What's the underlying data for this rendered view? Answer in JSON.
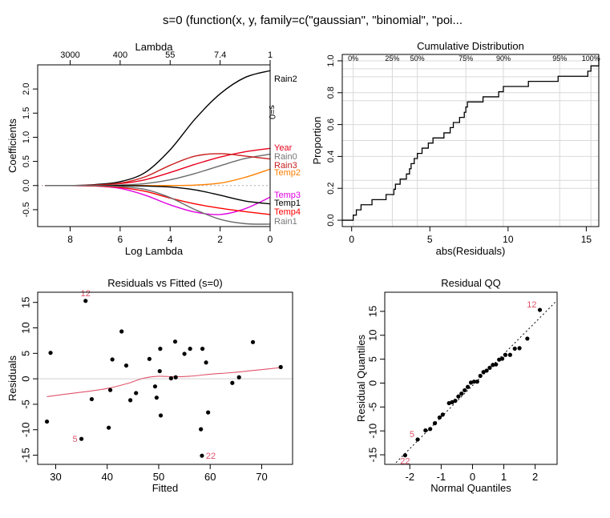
{
  "page_title": "s=0     (function(x, y, family=c(\"gaussian\", \"binomial\", \"poi...",
  "chart_data": [
    {
      "type": "line",
      "title": "",
      "top_axis_label": "Lambda",
      "top_ticks": [
        {
          "x": 8,
          "label": "3000"
        },
        {
          "x": 6,
          "label": "400"
        },
        {
          "x": 4,
          "label": "55"
        },
        {
          "x": 2,
          "label": "7.4"
        },
        {
          "x": 0,
          "label": "1"
        }
      ],
      "xlabel": "Log Lambda",
      "ylabel": "Coefficients",
      "xlim": [
        9.3,
        0
      ],
      "ylim": [
        -0.85,
        2.5
      ],
      "xticks": [
        8,
        6,
        4,
        2,
        0
      ],
      "yticks": [
        -0.5,
        0.0,
        0.5,
        1.0,
        1.5,
        2.0
      ],
      "ytick_labels": [
        "-0.5",
        "0.0",
        "0.5",
        "1.0",
        "1.5",
        "2.0"
      ],
      "vline_label": "s=0",
      "x": [
        9,
        8,
        7,
        6,
        5,
        4,
        3,
        2,
        1,
        0
      ],
      "series": [
        {
          "name": "Rain2",
          "color": "#000000",
          "values": [
            0.0,
            0.0,
            0.02,
            0.08,
            0.27,
            0.74,
            1.38,
            1.9,
            2.24,
            2.38
          ]
        },
        {
          "name": "Year",
          "color": "#e8001c",
          "values": [
            0.0,
            0.0,
            0.01,
            0.04,
            0.12,
            0.27,
            0.44,
            0.59,
            0.7,
            0.77
          ]
        },
        {
          "name": "Rain0",
          "color": "#6b6b6b",
          "values": [
            0.0,
            0.0,
            0.0,
            0.01,
            0.04,
            0.12,
            0.25,
            0.41,
            0.56,
            0.65
          ]
        },
        {
          "name": "Rain3",
          "color": "#c81e1e",
          "values": [
            0.0,
            0.0,
            0.01,
            0.05,
            0.18,
            0.42,
            0.61,
            0.66,
            0.61,
            0.55
          ]
        },
        {
          "name": "Temp2",
          "color": "#ff7f00",
          "values": [
            0.0,
            0.0,
            0.0,
            0.0,
            0.0,
            0.0,
            0.01,
            0.05,
            0.17,
            0.34
          ]
        },
        {
          "name": "Temp3",
          "color": "#e000e0",
          "values": [
            0.0,
            0.0,
            -0.01,
            -0.06,
            -0.2,
            -0.4,
            -0.55,
            -0.6,
            -0.48,
            -0.24
          ]
        },
        {
          "name": "Temp1",
          "color": "#000000",
          "values": [
            0.0,
            0.0,
            0.0,
            0.0,
            -0.01,
            -0.03,
            -0.09,
            -0.2,
            -0.32,
            -0.38
          ]
        },
        {
          "name": "Temp4",
          "color": "#ff0000",
          "values": [
            0.0,
            0.0,
            -0.01,
            -0.04,
            -0.12,
            -0.26,
            -0.38,
            -0.47,
            -0.54,
            -0.6
          ]
        },
        {
          "name": "Rain1",
          "color": "#6b6b6b",
          "values": [
            0.0,
            0.0,
            0.0,
            -0.02,
            -0.08,
            -0.25,
            -0.5,
            -0.7,
            -0.79,
            -0.8
          ]
        }
      ]
    },
    {
      "type": "line",
      "title": "Cumulative Distribution",
      "xlabel": "abs(Residuals)",
      "ylabel": "Proportion",
      "xlim": [
        -0.6,
        15.8
      ],
      "ylim": [
        -0.04,
        1.04
      ],
      "xticks": [
        0,
        5,
        10,
        15
      ],
      "yticks": [
        0.0,
        0.2,
        0.4,
        0.6,
        0.8,
        1.0
      ],
      "ytick_labels": [
        "0.0",
        "0.2",
        "0.4",
        "0.6",
        "0.8",
        "1.0"
      ],
      "grid": true,
      "quantiles": [
        {
          "label": "0%",
          "x": 0.1
        },
        {
          "label": "25%",
          "x": 2.6
        },
        {
          "label": "50%",
          "x": 4.2
        },
        {
          "label": "75%",
          "x": 7.3
        },
        {
          "label": "90%",
          "x": 9.7
        },
        {
          "label": "95%",
          "x": 13.3
        },
        {
          "label": "100%",
          "x": 15.3
        }
      ],
      "step_x": [
        0.1,
        0.3,
        0.6,
        1.3,
        2.2,
        2.7,
        2.8,
        3.1,
        3.5,
        3.7,
        3.8,
        4.0,
        4.2,
        4.5,
        4.9,
        5.2,
        5.9,
        6.3,
        6.5,
        6.9,
        7.2,
        7.3,
        7.4,
        8.4,
        9.4,
        9.7,
        11.3,
        13.2,
        15.1,
        15.3
      ],
      "step_y": [
        0.032,
        0.065,
        0.097,
        0.129,
        0.161,
        0.194,
        0.226,
        0.258,
        0.29,
        0.323,
        0.355,
        0.387,
        0.419,
        0.452,
        0.484,
        0.516,
        0.548,
        0.581,
        0.613,
        0.645,
        0.677,
        0.71,
        0.742,
        0.774,
        0.806,
        0.839,
        0.871,
        0.903,
        0.935,
        0.968
      ]
    },
    {
      "type": "scatter",
      "title": "Residuals vs Fitted     (s=0)",
      "xlabel": "Fitted",
      "ylabel": "Residuals",
      "xlim": [
        26.5,
        76
      ],
      "ylim": [
        -16.8,
        17
      ],
      "xticks": [
        30,
        40,
        50,
        60,
        70
      ],
      "yticks": [
        -15,
        -10,
        -5,
        0,
        5,
        10,
        15
      ],
      "hline": 0,
      "points": [
        {
          "x": 28.3,
          "y": -8.4
        },
        {
          "x": 29,
          "y": 5.1
        },
        {
          "x": 35,
          "y": -11.8
        },
        {
          "x": 35.8,
          "y": 15.3
        },
        {
          "x": 37,
          "y": -4
        },
        {
          "x": 40.3,
          "y": -9.6
        },
        {
          "x": 40.6,
          "y": -2.2
        },
        {
          "x": 41,
          "y": 3.8
        },
        {
          "x": 42.8,
          "y": 9.3
        },
        {
          "x": 43.7,
          "y": 2.6
        },
        {
          "x": 44.5,
          "y": -4.2
        },
        {
          "x": 45.6,
          "y": -2.8
        },
        {
          "x": 48.2,
          "y": 3.9
        },
        {
          "x": 49.3,
          "y": -1.5
        },
        {
          "x": 49.6,
          "y": -3.7
        },
        {
          "x": 50.2,
          "y": 1.5
        },
        {
          "x": 50.3,
          "y": 5.9
        },
        {
          "x": 50.4,
          "y": -7.2
        },
        {
          "x": 52.4,
          "y": 0.1
        },
        {
          "x": 53.2,
          "y": 7.3
        },
        {
          "x": 53.3,
          "y": 0.3
        },
        {
          "x": 55,
          "y": 4.9
        },
        {
          "x": 56.1,
          "y": 5.9
        },
        {
          "x": 58.2,
          "y": -9.9
        },
        {
          "x": 58.4,
          "y": -15.1
        },
        {
          "x": 58.5,
          "y": 5.9
        },
        {
          "x": 59.2,
          "y": 3.2
        },
        {
          "x": 59.6,
          "y": -6.6
        },
        {
          "x": 64.3,
          "y": -0.8
        },
        {
          "x": 65.6,
          "y": 0.3
        },
        {
          "x": 68.3,
          "y": 7.2
        },
        {
          "x": 73.7,
          "y": 2.3
        }
      ],
      "labels": [
        {
          "text": "12",
          "x": 35.8,
          "y": 15.3
        },
        {
          "text": "5",
          "x": 35,
          "y": -11.8
        },
        {
          "text": "22",
          "x": 58.4,
          "y": -15.1
        }
      ],
      "smooth": {
        "x": [
          28.3,
          32,
          36,
          40,
          44,
          47,
          50,
          53,
          56,
          60,
          64,
          68,
          73.7
        ],
        "y": [
          -3.5,
          -3.0,
          -2.5,
          -1.9,
          -0.9,
          0.1,
          0.5,
          0.4,
          0.5,
          0.9,
          1.2,
          1.6,
          2.2
        ]
      }
    },
    {
      "type": "scatter",
      "title": "Residual QQ",
      "xlabel": "Normal Quantiles",
      "ylabel": "Residual Quantiles",
      "xlim": [
        -2.8,
        2.7
      ],
      "ylim": [
        -17,
        19
      ],
      "xticks": [
        -2,
        -1,
        0,
        1,
        2
      ],
      "yticks": [
        -15,
        -10,
        -5,
        0,
        5,
        10,
        15
      ],
      "reference_line": {
        "x": [
          -2.8,
          2.7
        ],
        "y": [
          -19.0,
          17.3
        ]
      },
      "x": [
        -2.15,
        -1.75,
        -1.5,
        -1.35,
        -1.2,
        -1.05,
        -0.95,
        -0.75,
        -0.65,
        -0.55,
        -0.45,
        -0.35,
        -0.25,
        -0.15,
        -0.05,
        0.05,
        0.15,
        0.25,
        0.35,
        0.45,
        0.55,
        0.65,
        0.75,
        0.85,
        0.95,
        1.05,
        1.2,
        1.35,
        1.5,
        1.75,
        2.15
      ],
      "y": [
        -15.1,
        -11.8,
        -9.9,
        -9.6,
        -8.4,
        -7.2,
        -6.6,
        -4.2,
        -4,
        -3.7,
        -2.8,
        -2.2,
        -1.5,
        -0.8,
        0.1,
        0.3,
        0.3,
        1.5,
        2.3,
        2.6,
        3.2,
        3.8,
        3.9,
        4.9,
        5.1,
        5.9,
        5.9,
        7.2,
        7.3,
        9.3,
        15.3
      ],
      "labels": [
        {
          "text": "12",
          "x": 2.15,
          "y": 15.3
        },
        {
          "text": "5",
          "x": -1.75,
          "y": -11.8
        },
        {
          "text": "22",
          "x": -2.15,
          "y": -15.1
        }
      ]
    }
  ]
}
